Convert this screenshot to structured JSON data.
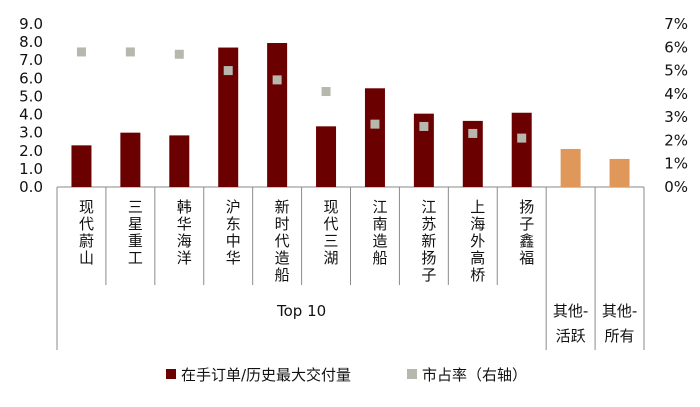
{
  "chart_data": {
    "type": "bar",
    "categories": [
      "现代蔚山",
      "三星重工",
      "韩华海洋",
      "沪东中华",
      "新时代造船",
      "现代三湖",
      "江南造船",
      "江苏新扬子",
      "上海外高桥",
      "扬子鑫福",
      "其他-活跃",
      "其他-所有"
    ],
    "series": [
      {
        "name": "在手订单/历史最大交付量",
        "axis": "left",
        "kind": "bar",
        "values": [
          2.3,
          3.0,
          2.85,
          7.7,
          7.95,
          3.35,
          5.45,
          4.05,
          3.65,
          4.1,
          2.1,
          1.55
        ],
        "colors": [
          "#6b0000",
          "#6b0000",
          "#6b0000",
          "#6b0000",
          "#6b0000",
          "#6b0000",
          "#6b0000",
          "#6b0000",
          "#6b0000",
          "#6b0000",
          "#e0985a",
          "#e0985a"
        ]
      },
      {
        "name": "市占率（右轴）",
        "axis": "right",
        "kind": "marker",
        "color": "#b8b7ae",
        "values": [
          0.058,
          0.058,
          0.057,
          0.05,
          0.046,
          0.041,
          0.027,
          0.026,
          0.023,
          0.021,
          null,
          null
        ]
      }
    ],
    "y_left": {
      "min": 0,
      "max": 9,
      "ticks": [
        "0.0",
        "1.0",
        "2.0",
        "3.0",
        "4.0",
        "5.0",
        "6.0",
        "7.0",
        "8.0",
        "9.0"
      ]
    },
    "y_right": {
      "min": 0,
      "max": 0.07,
      "ticks": [
        "0%",
        "1%",
        "2%",
        "3%",
        "4%",
        "5%",
        "6%",
        "7%"
      ]
    },
    "groups": [
      {
        "label": "Top 10",
        "span": [
          0,
          9
        ]
      },
      {
        "label": "其他-活跃",
        "span": [
          10,
          10
        ]
      },
      {
        "label": "其他-所有",
        "span": [
          11,
          11
        ]
      }
    ],
    "legend_position": "bottom"
  }
}
